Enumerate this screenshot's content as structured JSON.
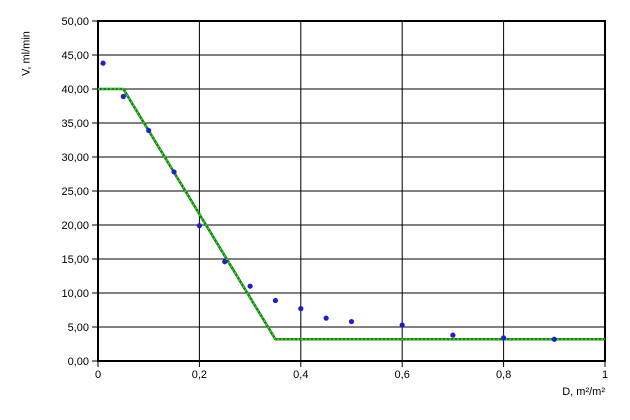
{
  "chart_data": {
    "type": "scatter",
    "title": "",
    "xlabel": "D, m²/m²",
    "ylabel": "V, ml/min",
    "xlim": [
      0,
      1
    ],
    "ylim": [
      0,
      50
    ],
    "grid": true,
    "legend": "none",
    "x_ticks": [
      {
        "v": 0,
        "label": "0"
      },
      {
        "v": 0.2,
        "label": "0,2"
      },
      {
        "v": 0.4,
        "label": "0,4"
      },
      {
        "v": 0.6,
        "label": "0,6"
      },
      {
        "v": 0.8,
        "label": "0,8"
      },
      {
        "v": 1,
        "label": "1"
      }
    ],
    "y_ticks": [
      {
        "v": 0,
        "label": "0,00"
      },
      {
        "v": 5,
        "label": "5,00"
      },
      {
        "v": 10,
        "label": "10,00"
      },
      {
        "v": 15,
        "label": "15,00"
      },
      {
        "v": 20,
        "label": "20,00"
      },
      {
        "v": 25,
        "label": "25,00"
      },
      {
        "v": 30,
        "label": "30,00"
      },
      {
        "v": 35,
        "label": "35,00"
      },
      {
        "v": 40,
        "label": "40,00"
      },
      {
        "v": 45,
        "label": "45,00"
      },
      {
        "v": 50,
        "label": "50,00"
      }
    ],
    "series": [
      {
        "name": "fitted-model-line",
        "type": "line",
        "color": "#089000",
        "dash_color": "#7dc87d",
        "points": [
          [
            0,
            40
          ],
          [
            0.05,
            40
          ],
          [
            0.35,
            3.2
          ],
          [
            1,
            3.2
          ]
        ]
      },
      {
        "name": "measured-points",
        "type": "scatter",
        "color": "#1d1dd2",
        "points": [
          [
            0.01,
            43.8
          ],
          [
            0.05,
            38.9
          ],
          [
            0.1,
            33.9
          ],
          [
            0.15,
            27.8
          ],
          [
            0.2,
            19.9
          ],
          [
            0.25,
            14.6
          ],
          [
            0.3,
            11.0
          ],
          [
            0.35,
            8.9
          ],
          [
            0.4,
            7.7
          ],
          [
            0.45,
            6.3
          ],
          [
            0.5,
            5.8
          ],
          [
            0.6,
            5.3
          ],
          [
            0.7,
            3.8
          ],
          [
            0.8,
            3.4
          ],
          [
            0.9,
            3.2
          ]
        ]
      }
    ],
    "colors": {
      "grid": "#000000",
      "axis": "#000000",
      "text": "#000000",
      "plot_bg": "#ffffff"
    }
  }
}
